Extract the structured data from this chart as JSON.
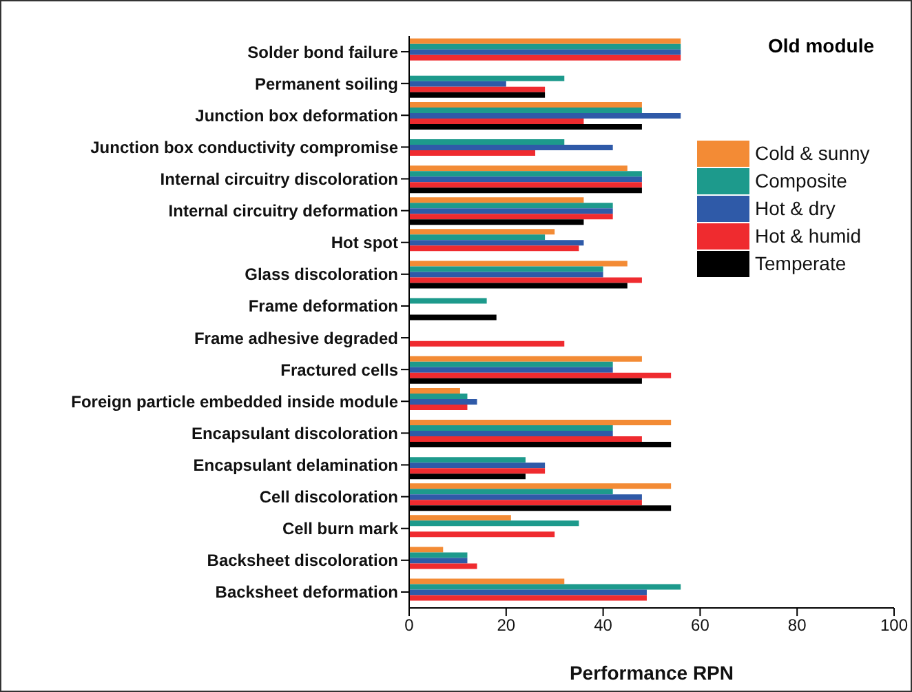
{
  "chart_data": {
    "type": "bar",
    "orientation": "horizontal",
    "title": "Old module",
    "xlabel": "Performance RPN",
    "categories": [
      "Solder bond failure",
      "Permanent soiling",
      "Junction box deformation",
      "Junction box conductivity compromise",
      "Internal circuitry discoloration",
      "Internal circuitry deformation",
      "Hot spot",
      "Glass discoloration",
      "Frame deformation",
      "Frame adhesive degraded",
      "Fractured cells",
      "Foreign particle embedded inside module",
      "Encapsulant discoloration",
      "Encapsulant delamination",
      "Cell discoloration",
      "Cell burn mark",
      "Backsheet discoloration",
      "Backsheet deformation"
    ],
    "series": [
      {
        "name": "Cold & sunny",
        "color": "#f38b35",
        "values": [
          56,
          null,
          48,
          null,
          45,
          36,
          30,
          45,
          null,
          null,
          48,
          10.5,
          54,
          null,
          54,
          21,
          7,
          32
        ]
      },
      {
        "name": "Composite",
        "color": "#1d9a8c",
        "values": [
          56,
          32,
          48,
          32,
          48,
          42,
          28,
          40,
          16,
          null,
          42,
          12,
          42,
          24,
          42,
          35,
          12,
          56
        ]
      },
      {
        "name": "Hot & dry",
        "color": "#2f5aa8",
        "values": [
          56,
          20,
          56,
          42,
          48,
          42,
          36,
          40,
          null,
          null,
          42,
          14,
          42,
          28,
          48,
          null,
          12,
          49
        ]
      },
      {
        "name": "Hot & humid",
        "color": "#ef2b2f",
        "values": [
          56,
          28,
          36,
          26,
          48,
          42,
          35,
          48,
          null,
          32,
          54,
          12,
          48,
          28,
          48,
          30,
          14,
          49
        ]
      },
      {
        "name": "Temperate",
        "color": "#000000",
        "values": [
          null,
          28,
          48,
          null,
          48,
          36,
          null,
          45,
          18,
          null,
          48,
          null,
          54,
          24,
          54,
          null,
          null,
          null
        ]
      }
    ],
    "xlim": [
      0,
      100
    ],
    "xticks": [
      0,
      20,
      40,
      60,
      80,
      100
    ],
    "grid": false,
    "legend": "top right"
  }
}
